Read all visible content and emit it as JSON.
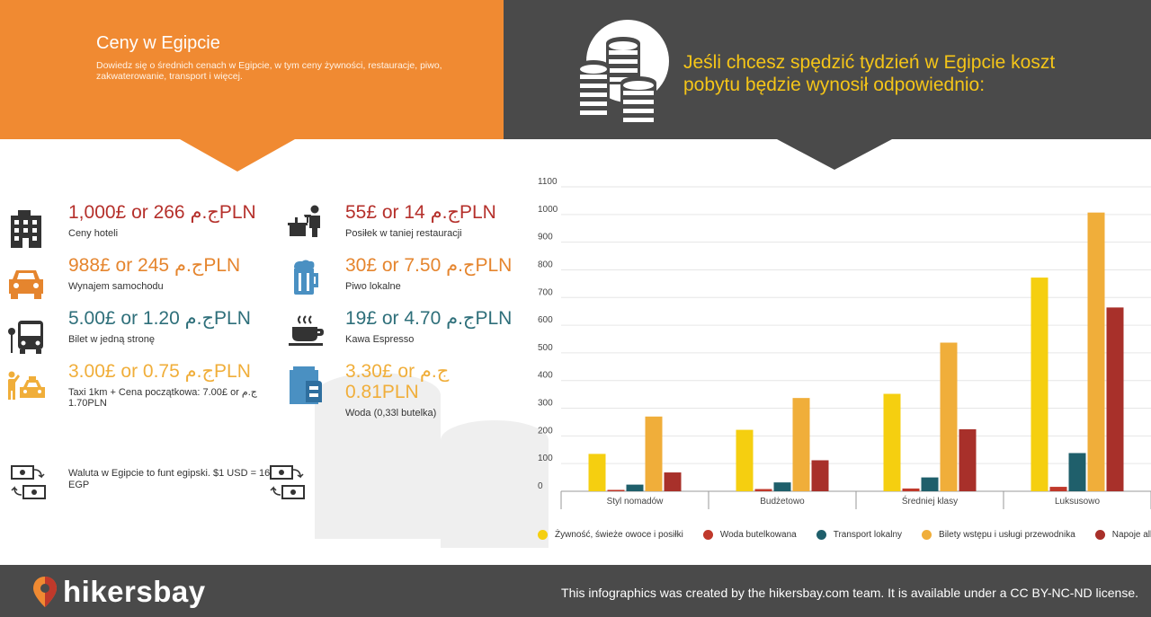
{
  "header": {
    "title": "Ceny w Egipcie",
    "subtitle": "Dowiedz się o średnich cenach w Egipcie, w tym ceny żywności, restauracje, piwo, zakwaterowanie, transport i więcej.",
    "headline": "Jeśli chcesz spędzić tydzień w Egipcie koszt pobytu będzie wynosił odpowiednio:"
  },
  "prices": [
    {
      "value": "1,000£ or 266 ج.مPLN",
      "label": "Ceny hoteli",
      "icon": "hotel-building-icon",
      "color": "#b5302b"
    },
    {
      "value": "988£ or 245 ج.مPLN",
      "label": "Wynajem samochodu",
      "icon": "car-icon",
      "color": "#e5852e"
    },
    {
      "value": "5.00£ or 1.20 ج.مPLN",
      "label": "Bilet w jedną stronę",
      "icon": "bus-icon",
      "color": "#2e6f7a"
    },
    {
      "value": "3.00£ or 0.75 ج.مPLN",
      "label": "Taxi 1km + Cena początkowa: 7.00£ or ج.م 1.70PLN",
      "icon": "taxi-icon",
      "color": "#f0ae3a"
    },
    {
      "value": "55£ or 14 ج.مPLN",
      "label": "Posiłek w taniej restauracji",
      "icon": "waiter-icon",
      "color": "#b5302b"
    },
    {
      "value": "30£ or 7.50 ج.مPLN",
      "label": "Piwo lokalne",
      "icon": "beer-mug-icon",
      "color": "#e5852e"
    },
    {
      "value": "19£ or 4.70 ج.مPLN",
      "label": "Kawa Espresso",
      "icon": "coffee-cup-icon",
      "color": "#2e6f7a"
    },
    {
      "value": "3.30£ or ج.م 0.81PLN",
      "label": "Woda (0,33l butelka)",
      "icon": "water-bottle-icon",
      "color": "#f0ae3a"
    }
  ],
  "currency_note": "Waluta w Egipcie to funt egipski. $1 USD = 16 EGP",
  "footer": {
    "brand": "hikersbay",
    "license": "This infographics was created by the hikersbay.com team. It is available under a CC BY-NC-ND license."
  },
  "chart_data": {
    "type": "bar",
    "categories": [
      "Styl nomadów",
      "Budżetowo",
      "Średniej klasy",
      "Luksusowo"
    ],
    "ylim": [
      0,
      1100
    ],
    "yticks": [
      0,
      100,
      200,
      300,
      400,
      500,
      600,
      700,
      800,
      900,
      1000,
      1100
    ],
    "grid": true,
    "legend": "bottom",
    "series": [
      {
        "name": "Żywność, świeże owoce i posiłki",
        "color": "#f5cf10",
        "values": [
          135,
          222,
          352,
          772
        ]
      },
      {
        "name": "Woda butelkowana",
        "color": "#c0392b",
        "values": [
          5,
          8,
          10,
          16
        ]
      },
      {
        "name": "Transport lokalny",
        "color": "#1f5f6b",
        "values": [
          24,
          32,
          50,
          138
        ]
      },
      {
        "name": "Bilety wstępu i usługi przewodnika",
        "color": "#f0ae3a",
        "values": [
          270,
          337,
          537,
          1007
        ]
      },
      {
        "name": "Napoje alkoholowe",
        "color": "#a8302a",
        "values": [
          68,
          112,
          224,
          664
        ]
      }
    ]
  }
}
